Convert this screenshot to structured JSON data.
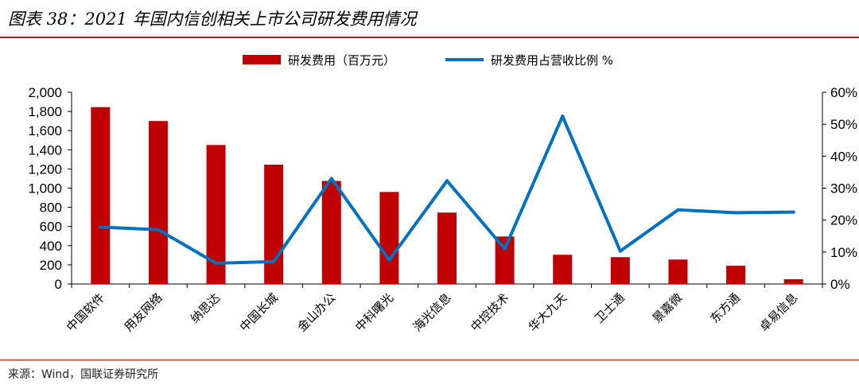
{
  "figure": {
    "title": "图表 38：2021 年国内信创相关上市公司研发费用情况",
    "source": "来源：Wind，国联证券研究所"
  },
  "chart_data": {
    "type": "bar",
    "categories": [
      "中国软件",
      "用友网络",
      "纳思达",
      "中国长城",
      "金山办公",
      "中科曙光",
      "海光信息",
      "中控技术",
      "华大九天",
      "卫士通",
      "景嘉微",
      "东方通",
      "卓易信息"
    ],
    "series": [
      {
        "name": "研发费用（百万元）",
        "type": "bar",
        "axis": "left",
        "color": "#c00000",
        "values": [
          1845,
          1700,
          1450,
          1245,
          1075,
          960,
          745,
          495,
          305,
          280,
          255,
          190,
          50
        ]
      },
      {
        "name": "研发费用占营收比例 %",
        "type": "line",
        "axis": "right",
        "color": "#0070c0",
        "values": [
          17.8,
          17.0,
          6.5,
          7.0,
          33.0,
          7.5,
          32.3,
          11.0,
          52.5,
          10.3,
          23.2,
          22.3,
          22.5
        ]
      }
    ],
    "y_left": {
      "ylim": [
        0,
        2000
      ],
      "ticks": [
        0,
        200,
        400,
        600,
        800,
        1000,
        1200,
        1400,
        1600,
        1800,
        2000
      ],
      "tick_labels": [
        "0",
        "200",
        "400",
        "600",
        "800",
        "1,000",
        "1,200",
        "1,400",
        "1,600",
        "1,800",
        "2,000"
      ]
    },
    "y_right": {
      "ylim": [
        0,
        60
      ],
      "ticks": [
        0,
        10,
        20,
        30,
        40,
        50,
        60
      ],
      "tick_labels": [
        "0%",
        "10%",
        "20%",
        "30%",
        "40%",
        "50%",
        "60%"
      ]
    },
    "legend": "top-center",
    "grid": false
  }
}
